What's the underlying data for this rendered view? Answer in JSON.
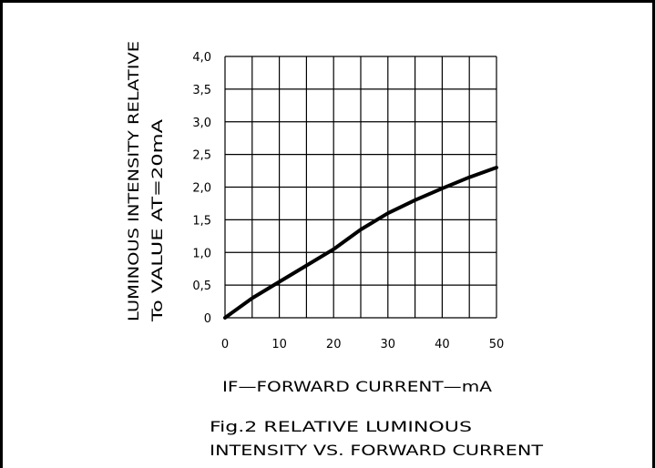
{
  "chart_data": {
    "type": "line",
    "xlabel": "IF—FORWARD CURRENT—mA",
    "ylabel": [
      "LUMINOUS INTENSITY RELATIVE",
      "To VALUE AT=20mA"
    ],
    "caption": [
      "Fig.2 RELATIVE LUMINOUS",
      "INTENSITY VS. FORWARD CURRENT"
    ],
    "x_ticks": [
      0,
      10,
      20,
      30,
      40,
      50
    ],
    "x_tick_labels": [
      "0",
      "10",
      "20",
      "30",
      "40",
      "50"
    ],
    "y_ticks": [
      0,
      0.5,
      1.0,
      1.5,
      2.0,
      2.5,
      3.0,
      3.5,
      4.0
    ],
    "y_tick_labels": [
      "0",
      "0,5",
      "1,0",
      "1,5",
      "2,0",
      "2,5",
      "3,0",
      "3,5",
      "4,0"
    ],
    "xlim": [
      0,
      50
    ],
    "ylim": [
      0,
      4.0
    ],
    "grid": true,
    "series": [
      {
        "x": [
          0,
          5,
          10,
          15,
          20,
          25,
          30,
          35,
          40,
          45,
          50
        ],
        "y": [
          0,
          0.3,
          0.55,
          0.8,
          1.05,
          1.35,
          1.6,
          1.8,
          1.98,
          2.15,
          2.3
        ]
      }
    ]
  }
}
